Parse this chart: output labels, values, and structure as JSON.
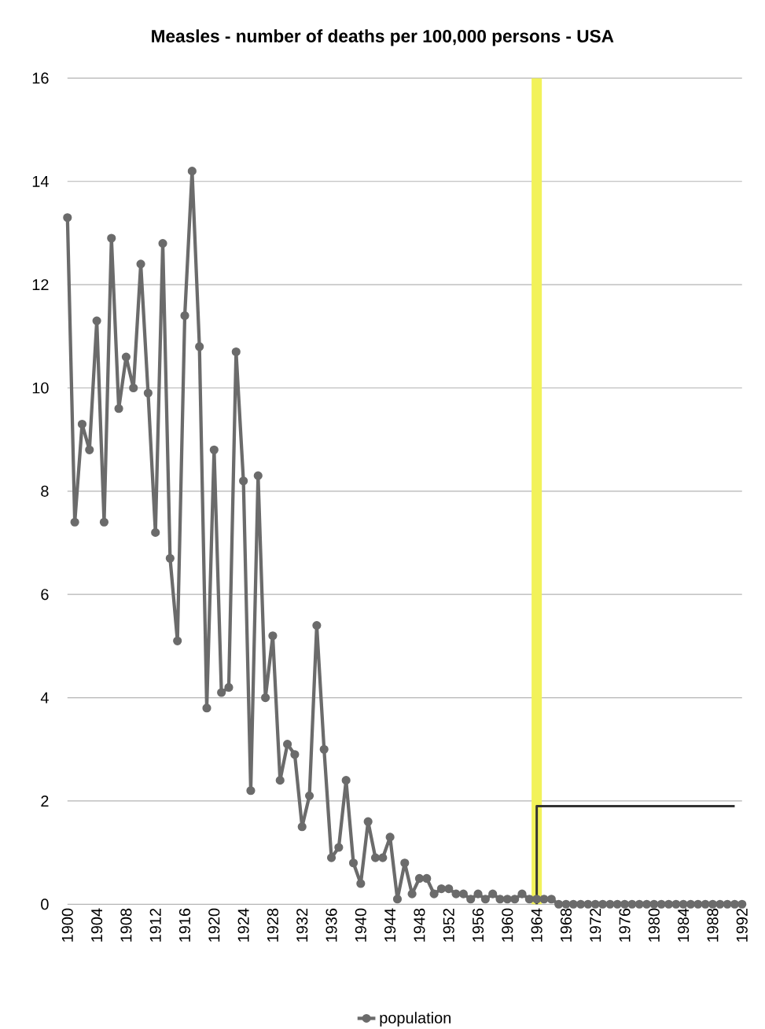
{
  "chart_data": {
    "type": "line",
    "title": "Measles - number of deaths per 100,000  persons - USA",
    "xlim": [
      1900,
      1992
    ],
    "xticks": [
      1900,
      1904,
      1908,
      1912,
      1916,
      1920,
      1924,
      1928,
      1932,
      1936,
      1940,
      1944,
      1948,
      1952,
      1956,
      1960,
      1964,
      1968,
      1972,
      1976,
      1980,
      1984,
      1988,
      1992
    ],
    "ylim": [
      0,
      16
    ],
    "yticks": [
      0,
      2,
      4,
      6,
      8,
      10,
      12,
      14,
      16
    ],
    "grid": "y",
    "legend": "bottom",
    "marker": "circle",
    "bands": [
      {
        "axis": "x",
        "from": 1963.3,
        "to": 1964.7,
        "color": "#f2f25a"
      }
    ],
    "series": [
      {
        "name": "population",
        "color": "#6b6b6b",
        "x": [
          1900,
          1901,
          1902,
          1903,
          1904,
          1905,
          1906,
          1907,
          1908,
          1909,
          1910,
          1911,
          1912,
          1913,
          1914,
          1915,
          1916,
          1917,
          1918,
          1919,
          1920,
          1921,
          1922,
          1923,
          1924,
          1925,
          1926,
          1927,
          1928,
          1929,
          1930,
          1931,
          1932,
          1933,
          1934,
          1935,
          1936,
          1937,
          1938,
          1939,
          1940,
          1941,
          1942,
          1943,
          1944,
          1945,
          1946,
          1947,
          1948,
          1949,
          1950,
          1951,
          1952,
          1953,
          1954,
          1955,
          1956,
          1957,
          1958,
          1959,
          1960,
          1961,
          1962,
          1963,
          1964,
          1965,
          1966,
          1967,
          1968,
          1969,
          1970,
          1971,
          1972,
          1973,
          1974,
          1975,
          1976,
          1977,
          1978,
          1979,
          1980,
          1981,
          1982,
          1983,
          1984,
          1985,
          1986,
          1987,
          1988,
          1989,
          1990,
          1991,
          1992
        ],
        "values": [
          13.3,
          7.4,
          9.3,
          8.8,
          11.3,
          7.4,
          12.9,
          9.6,
          10.6,
          10.0,
          12.4,
          9.9,
          7.2,
          12.8,
          6.7,
          5.1,
          11.4,
          14.2,
          10.8,
          3.8,
          8.8,
          4.1,
          4.2,
          10.7,
          8.2,
          2.2,
          8.3,
          4.0,
          5.2,
          2.4,
          3.1,
          2.9,
          1.5,
          2.1,
          5.4,
          3.0,
          0.9,
          1.1,
          2.4,
          0.8,
          0.4,
          1.6,
          0.9,
          0.9,
          1.3,
          0.1,
          0.8,
          0.2,
          0.5,
          0.5,
          0.2,
          0.3,
          0.3,
          0.2,
          0.2,
          0.1,
          0.2,
          0.1,
          0.2,
          0.1,
          0.1,
          0.1,
          0.2,
          0.1,
          0.1,
          0.1,
          0.1,
          0,
          0,
          0,
          0,
          0,
          0,
          0,
          0,
          0,
          0,
          0,
          0,
          0,
          0,
          0,
          0,
          0,
          0,
          0,
          0,
          0,
          0,
          0,
          0,
          0,
          0
        ]
      },
      {
        "type": "line",
        "color": "#333333",
        "marker": "none",
        "x": [
          1964,
          1964,
          1991
        ],
        "values": [
          0,
          1.9,
          1.9
        ]
      }
    ]
  }
}
